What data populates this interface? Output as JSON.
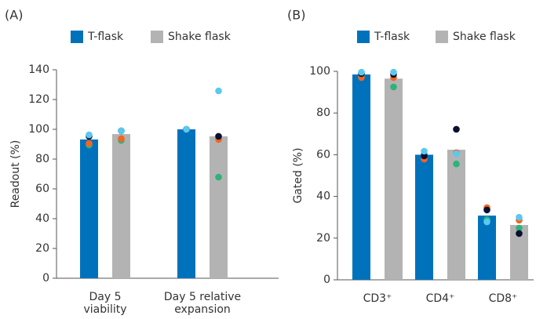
{
  "chart_data": [
    {
      "type": "bar",
      "panel_label": "(A)",
      "ylabel": "Readout (%)",
      "categories": [
        [
          "Day 5",
          "viability"
        ],
        [
          "Day 5 relative",
          "expansion"
        ]
      ],
      "ylim": [
        0,
        140
      ],
      "yticks": [
        0,
        20,
        40,
        60,
        80,
        100,
        120,
        140
      ],
      "point_colors": [
        "#5bc8f0",
        "#0a0f2e",
        "#f26522",
        "#2db37a"
      ],
      "series": [
        {
          "name": "T-flask",
          "color": "#0072bc",
          "values": [
            93.2,
            100
          ],
          "points": [
            [
              96.3,
              95.3,
              90.5,
              89.5
            ],
            [
              100,
              100,
              100,
              100
            ]
          ]
        },
        {
          "name": "Shake flask",
          "color": "#b3b3b3",
          "values": [
            96.8,
            95.3
          ],
          "points": [
            [
              99,
              99,
              93.7,
              92.6
            ],
            [
              125.8,
              95.3,
              93.2,
              67.9
            ]
          ]
        }
      ]
    },
    {
      "type": "bar",
      "panel_label": "(B)",
      "ylabel": "Gated (%)",
      "categories": [
        [
          "CD3⁺"
        ],
        [
          "CD4⁺"
        ],
        [
          "CD8⁺"
        ]
      ],
      "ylim": [
        0,
        100
      ],
      "yticks": [
        0,
        20,
        40,
        60,
        80,
        100
      ],
      "point_colors": [
        "#5bc8f0",
        "#0a0f2e",
        "#f26522",
        "#2db37a"
      ],
      "series": [
        {
          "name": "T-flask",
          "color": "#0072bc",
          "values": [
            98.5,
            60,
            30.8
          ],
          "points": [
            [
              99.6,
              98.9,
              97,
              97.7
            ],
            [
              61.7,
              59.4,
              57.9,
              60.2
            ],
            [
              27.8,
              33.5,
              34.6,
              28.9
            ]
          ]
        },
        {
          "name": "Shake flask",
          "color": "#b3b3b3",
          "values": [
            96.5,
            62.4,
            26.3
          ],
          "points": [
            [
              99.6,
              98.5,
              97,
              92.5
            ],
            [
              60.5,
              72.2,
              61,
              55.6
            ],
            [
              30,
              22.2,
              28.6,
              24.8
            ]
          ]
        }
      ]
    }
  ]
}
